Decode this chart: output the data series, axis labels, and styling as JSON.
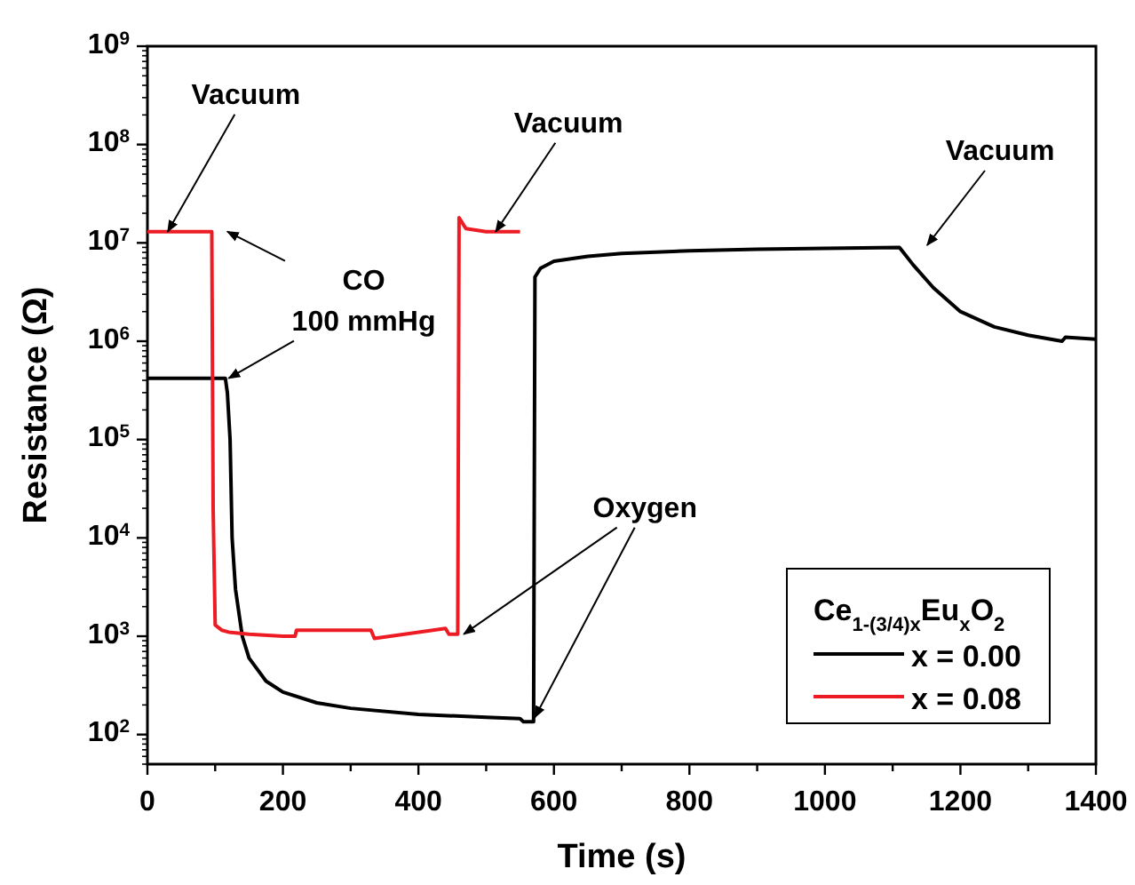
{
  "chart_data": {
    "type": "line",
    "xlabel": "Time (s)",
    "ylabel": "Resistance (Ω)",
    "legend_title": "Ce$_{1-(3/4)x}$Eu$_{x}$O$_{2}$",
    "legend": "bottom right",
    "log": true,
    "line_style": "solid",
    "xlim": [
      0,
      1400
    ],
    "ylim": [
      50,
      1000000000
    ],
    "xticks": [
      0,
      {
        "value": 100,
        "label": null
      },
      200,
      {
        "value": 300,
        "label": null
      },
      400,
      {
        "value": 500,
        "label": null
      },
      600,
      {
        "value": 700,
        "label": null
      },
      800,
      {
        "value": 900,
        "label": null
      },
      1000,
      {
        "value": 1100,
        "label": null
      },
      1200,
      {
        "value": 1300,
        "label": null
      },
      1400
    ],
    "yticks": [
      {
        "value": 100,
        "label": "10$^{2}$"
      },
      {
        "value": 1000,
        "label": "10$^{3}$"
      },
      {
        "value": 10000,
        "label": "10$^{4}$"
      },
      {
        "value": 100000,
        "label": "10$^{5}$"
      },
      {
        "value": 1000000,
        "label": "10$^{6}$"
      },
      {
        "value": 10000000,
        "label": "10$^{7}$"
      },
      {
        "value": 100000000,
        "label": "10$^{8}$"
      },
      {
        "value": 1000000000,
        "label": "10$^{9}$"
      }
    ],
    "series": [
      {
        "name": "x = 0.00",
        "color": "#000000",
        "x": [
          0,
          50,
          115,
          118,
          122,
          125,
          130,
          140,
          150,
          175,
          200,
          250,
          300,
          400,
          500,
          550,
          555,
          570,
          572,
          580,
          600,
          650,
          700,
          800,
          900,
          1000,
          1110,
          1130,
          1160,
          1200,
          1250,
          1300,
          1350,
          1355,
          1400
        ],
        "values": [
          420000,
          420000,
          420000,
          300000,
          100000,
          10000,
          3000,
          1000,
          600,
          350,
          270,
          210,
          185,
          160,
          150,
          145,
          135,
          135,
          4500000,
          5500000,
          6500000,
          7300000,
          7800000,
          8300000,
          8600000,
          8800000,
          9000000,
          6000000,
          3500000,
          2000000,
          1400000,
          1150000,
          1000000,
          1100000,
          1050000
        ]
      },
      {
        "name": "x = 0.08",
        "color": "#ed1c24",
        "x": [
          0,
          50,
          95,
          97,
          100,
          110,
          120,
          150,
          200,
          218,
          220,
          330,
          335,
          440,
          445,
          458,
          460,
          470,
          500,
          550
        ],
        "values": [
          13000000,
          13000000,
          13000000,
          20000,
          1300,
          1150,
          1100,
          1050,
          1000,
          1000,
          1150,
          1150,
          950,
          1200,
          1050,
          1050,
          18000000,
          14000000,
          13000000,
          13000000
        ]
      }
    ],
    "annotations": [
      {
        "text": "Vacuum",
        "x": 30,
        "y": 13000000
      },
      {
        "text": "CO\n100 mmHg",
        "x": 120,
        "y": 420000
      },
      {
        "text": "Vacuum",
        "x": 514,
        "y": 13000000
      },
      "Vacuum",
      {
        "text": "Oxygen",
        "x": 467,
        "y": 1050
      }
    ]
  }
}
